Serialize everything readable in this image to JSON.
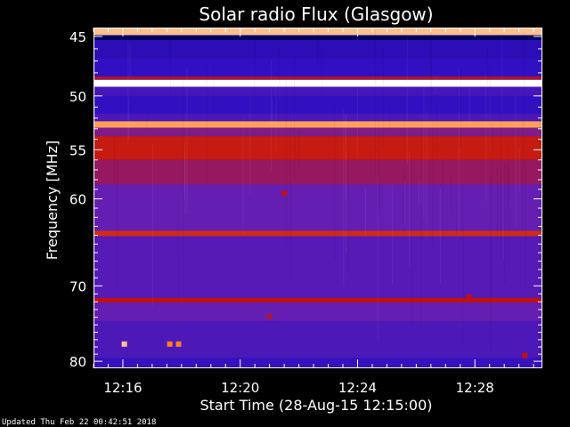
{
  "chart_data": {
    "type": "heatmap",
    "title": "Solar radio Flux (Glasgow)",
    "xlabel": "Start Time (28-Aug-15 12:15:00)",
    "ylabel": "Frequency [MHz]",
    "footer": "Updated Thu Feb 22 00:42:51 2018",
    "x_range_minutes": [
      0,
      15.3
    ],
    "x_ticks": [
      {
        "minutes": 1,
        "label": "12:16"
      },
      {
        "minutes": 5,
        "label": "12:20"
      },
      {
        "minutes": 9,
        "label": "12:24"
      },
      {
        "minutes": 13,
        "label": "12:28"
      }
    ],
    "y_range_mhz": [
      44.3,
      81.0
    ],
    "y_scale": "log",
    "y_major_ticks": [
      {
        "mhz": 45,
        "label": "45"
      },
      {
        "mhz": 50,
        "label": "50"
      },
      {
        "mhz": 55,
        "label": "55"
      },
      {
        "mhz": 60,
        "label": "60"
      },
      {
        "mhz": 70,
        "label": "70"
      },
      {
        "mhz": 80,
        "label": "80"
      }
    ],
    "y_minor_ticks_mhz": [
      46,
      47,
      48,
      49,
      51,
      52,
      53,
      54,
      56,
      57,
      58,
      59,
      61,
      62,
      63,
      64,
      65,
      66,
      67,
      68,
      69,
      71,
      72,
      73,
      74,
      75,
      76,
      77,
      78,
      79
    ],
    "colormap": [
      "#000060",
      "#3010c0",
      "#6a20b0",
      "#c01010",
      "#ff8020",
      "#ffffff"
    ],
    "bands": [
      {
        "mhz": [
          44.3,
          44.9
        ],
        "level": 0.9
      },
      {
        "mhz": [
          44.9,
          45.3
        ],
        "level": 0.0
      },
      {
        "mhz": [
          45.3,
          46.8
        ],
        "level": 0.18
      },
      {
        "mhz": [
          46.8,
          48.3
        ],
        "level": 0.2
      },
      {
        "mhz": [
          48.3,
          48.6
        ],
        "level": 0.55
      },
      {
        "mhz": [
          48.6,
          49.2
        ],
        "level": 1.0
      },
      {
        "mhz": [
          49.2,
          50.0
        ],
        "level": 0.28
      },
      {
        "mhz": [
          50.0,
          51.6
        ],
        "level": 0.2
      },
      {
        "mhz": [
          51.6,
          52.3
        ],
        "level": 0.3
      },
      {
        "mhz": [
          52.3,
          52.9
        ],
        "level": 0.85
      },
      {
        "mhz": [
          52.9,
          53.7
        ],
        "level": 0.45
      },
      {
        "mhz": [
          53.7,
          56.0
        ],
        "level": 0.62
      },
      {
        "mhz": [
          56.0,
          58.5
        ],
        "level": 0.5
      },
      {
        "mhz": [
          58.5,
          63.5
        ],
        "level": 0.38
      },
      {
        "mhz": [
          63.5,
          64.1
        ],
        "level": 0.65
      },
      {
        "mhz": [
          64.1,
          71.5
        ],
        "level": 0.33
      },
      {
        "mhz": [
          71.5,
          72.1
        ],
        "level": 0.6
      },
      {
        "mhz": [
          72.1,
          74.5
        ],
        "level": 0.38
      },
      {
        "mhz": [
          74.5,
          79.5
        ],
        "level": 0.3
      },
      {
        "mhz": [
          79.5,
          81.0
        ],
        "level": 0.22
      }
    ],
    "hot_spots": [
      {
        "minutes": 1.05,
        "mhz": 77.6,
        "level": 0.9
      },
      {
        "minutes": 2.6,
        "mhz": 77.6,
        "level": 0.8
      },
      {
        "minutes": 2.9,
        "mhz": 77.6,
        "level": 0.8
      },
      {
        "minutes": 6.5,
        "mhz": 59.4,
        "level": 0.6
      },
      {
        "minutes": 6.0,
        "mhz": 73.9,
        "level": 0.55
      },
      {
        "minutes": 12.8,
        "mhz": 71.4,
        "level": 0.6
      },
      {
        "minutes": 14.7,
        "mhz": 79.2,
        "level": 0.6
      }
    ]
  }
}
